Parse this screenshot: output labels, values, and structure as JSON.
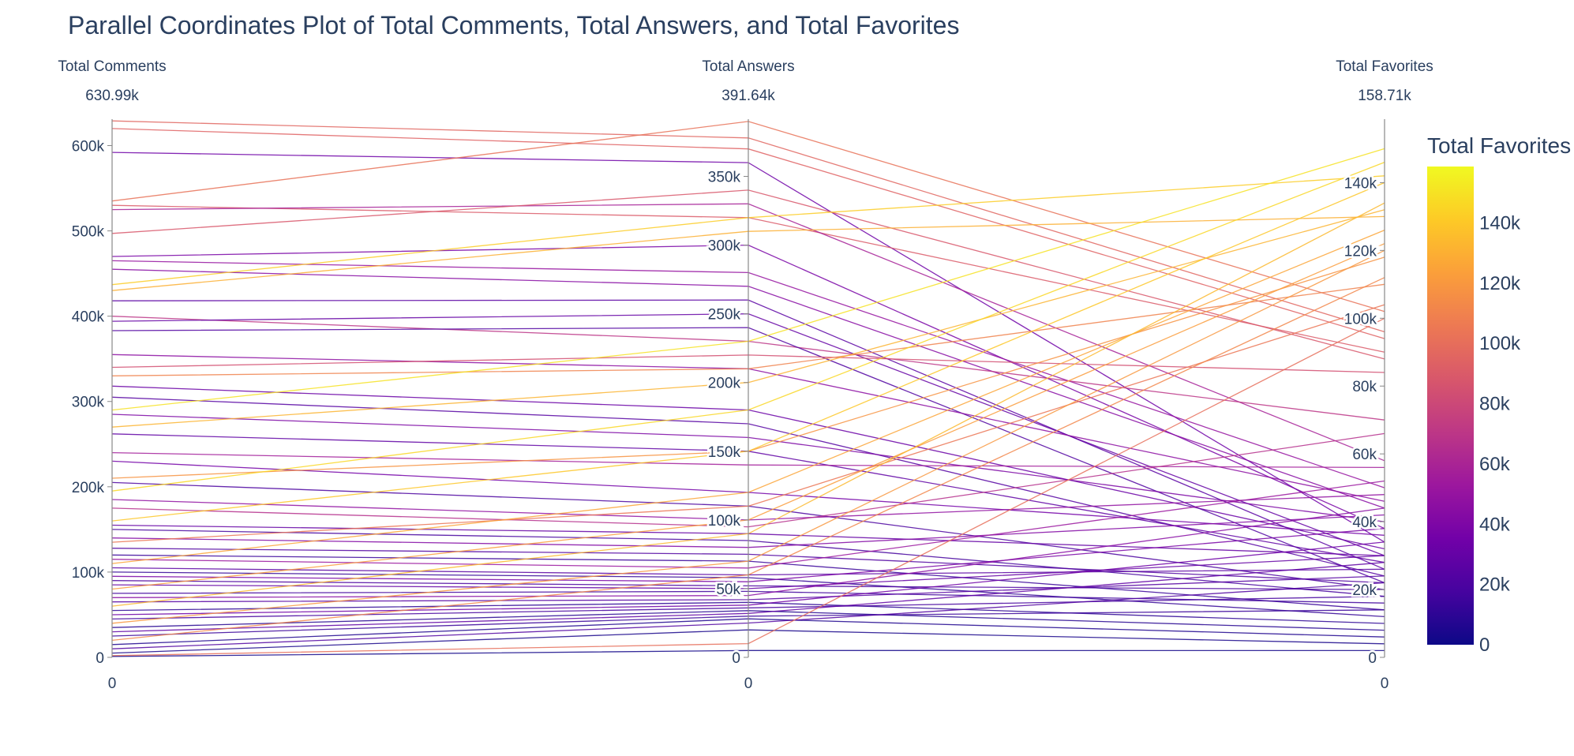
{
  "chart_data": {
    "type": "parallel-coordinates",
    "title": "Parallel Coordinates Plot of Total Comments, Total Answers, and Total Favorites",
    "dimensions": [
      {
        "name": "Total Comments",
        "max_label": "630.99k",
        "range": [
          0,
          630990
        ],
        "ticks": [
          0,
          100000,
          200000,
          300000,
          400000,
          500000,
          600000
        ],
        "tick_labels": [
          "0",
          "100k",
          "200k",
          "300k",
          "400k",
          "500k",
          "600k"
        ],
        "min_label": "0"
      },
      {
        "name": "Total Answers",
        "max_label": "391.64k",
        "range": [
          0,
          391640
        ],
        "ticks": [
          0,
          50000,
          100000,
          150000,
          200000,
          250000,
          300000,
          350000
        ],
        "tick_labels": [
          "0",
          "50k",
          "100k",
          "150k",
          "200k",
          "250k",
          "300k",
          "350k"
        ],
        "min_label": "0"
      },
      {
        "name": "Total Favorites",
        "max_label": "158.71k",
        "range": [
          0,
          158710
        ],
        "ticks": [
          0,
          20000,
          40000,
          60000,
          80000,
          100000,
          120000,
          140000
        ],
        "tick_labels": [
          "0",
          "20k",
          "40k",
          "60k",
          "80k",
          "100k",
          "120k",
          "140k"
        ],
        "min_label": "0"
      }
    ],
    "colorbar": {
      "title": "Total Favorites",
      "range": [
        0,
        158710
      ],
      "ticks": [
        0,
        20000,
        40000,
        60000,
        80000,
        100000,
        120000,
        140000
      ],
      "tick_labels": [
        "0",
        "20k",
        "40k",
        "60k",
        "80k",
        "100k",
        "120k",
        "140k"
      ],
      "colorscale": [
        "#0d0887",
        "#46039f",
        "#7201a8",
        "#9c179e",
        "#bd3786",
        "#d8576b",
        "#ed7953",
        "#fb9f3a",
        "#fdca26",
        "#f0f921"
      ]
    },
    "lines": [
      [
        629000,
        378000,
        96000
      ],
      [
        620000,
        370000,
        94000
      ],
      [
        592000,
        360000,
        34000
      ],
      [
        535000,
        390000,
        102000
      ],
      [
        530000,
        320000,
        90000
      ],
      [
        525000,
        330000,
        58000
      ],
      [
        497000,
        340000,
        88000
      ],
      [
        470000,
        300000,
        38000
      ],
      [
        465000,
        280000,
        50000
      ],
      [
        455000,
        270000,
        44000
      ],
      [
        437000,
        320000,
        142000
      ],
      [
        430000,
        310000,
        130000
      ],
      [
        418000,
        260000,
        26000
      ],
      [
        400000,
        230000,
        70000
      ],
      [
        394000,
        250000,
        30000
      ],
      [
        383000,
        240000,
        22000
      ],
      [
        355000,
        210000,
        46000
      ],
      [
        340000,
        220000,
        84000
      ],
      [
        330000,
        210000,
        110000
      ],
      [
        318000,
        180000,
        32000
      ],
      [
        305000,
        170000,
        24000
      ],
      [
        290000,
        230000,
        150000
      ],
      [
        285000,
        160000,
        40000
      ],
      [
        270000,
        200000,
        132000
      ],
      [
        262000,
        150000,
        28000
      ],
      [
        240000,
        140000,
        56000
      ],
      [
        230000,
        120000,
        36000
      ],
      [
        210000,
        150000,
        118000
      ],
      [
        205000,
        110000,
        20000
      ],
      [
        195000,
        180000,
        146000
      ],
      [
        185000,
        100000,
        48000
      ],
      [
        175000,
        95000,
        66000
      ],
      [
        160000,
        150000,
        140000
      ],
      [
        155000,
        90000,
        30000
      ],
      [
        150000,
        85000,
        18000
      ],
      [
        140000,
        80000,
        42000
      ],
      [
        135000,
        110000,
        104000
      ],
      [
        128000,
        75000,
        22000
      ],
      [
        120000,
        70000,
        14000
      ],
      [
        115000,
        65000,
        52000
      ],
      [
        110000,
        120000,
        126000
      ],
      [
        105000,
        60000,
        26000
      ],
      [
        100000,
        58000,
        12000
      ],
      [
        95000,
        55000,
        38000
      ],
      [
        90000,
        52000,
        20000
      ],
      [
        85000,
        50000,
        30000
      ],
      [
        80000,
        100000,
        122000
      ],
      [
        75000,
        48000,
        16000
      ],
      [
        70000,
        45000,
        44000
      ],
      [
        65000,
        42000,
        24000
      ],
      [
        60000,
        90000,
        134000
      ],
      [
        55000,
        40000,
        10000
      ],
      [
        50000,
        38000,
        34000
      ],
      [
        45000,
        36000,
        18000
      ],
      [
        40000,
        70000,
        120000
      ],
      [
        35000,
        34000,
        8000
      ],
      [
        30000,
        32000,
        28000
      ],
      [
        25000,
        30000,
        14000
      ],
      [
        20000,
        60000,
        112000
      ],
      [
        15000,
        28000,
        6000
      ],
      [
        10000,
        25000,
        22000
      ],
      [
        5000,
        20000,
        4000
      ],
      [
        2000,
        10000,
        100000
      ],
      [
        1000,
        5000,
        2000
      ]
    ]
  }
}
